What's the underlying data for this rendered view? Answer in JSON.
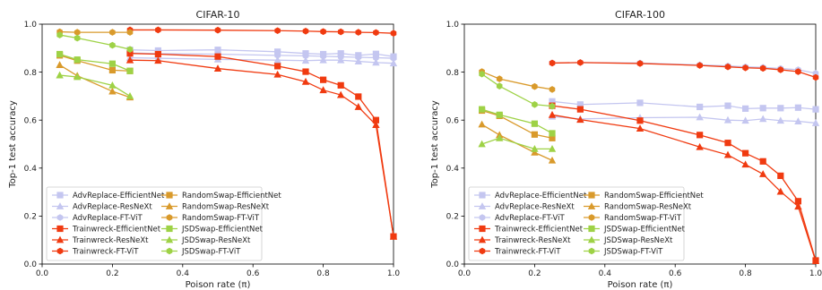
{
  "colors": {
    "AdvReplace": "#c4c6f0",
    "Trainwreck": "#f03a10",
    "RandomSwap": "#d99a2b",
    "JSDSwap": "#9ed246"
  },
  "chart_data": [
    {
      "type": "line",
      "title": "CIFAR-10",
      "xlabel": "Poison rate (π)",
      "ylabel": "Top-1 test accuracy",
      "xlim": [
        0.0,
        1.0
      ],
      "ylim": [
        0.0,
        1.0
      ],
      "xticks": [
        "0.0",
        "0.2",
        "0.4",
        "0.6",
        "0.8",
        "1.0"
      ],
      "yticks": [
        "0.0",
        "0.2",
        "0.4",
        "0.6",
        "0.8",
        "1.0"
      ],
      "legend_position": "lower-left",
      "series": [
        {
          "name": "AdvReplace-EfficientNet",
          "family": "AdvReplace",
          "marker": "square",
          "x": [
            0.25,
            0.33,
            0.5,
            0.67,
            0.75,
            0.8,
            0.85,
            0.9,
            0.95,
            1.0
          ],
          "y": [
            0.893,
            0.89,
            0.893,
            0.885,
            0.878,
            0.875,
            0.878,
            0.87,
            0.876,
            0.865
          ]
        },
        {
          "name": "AdvReplace-ResNeXt",
          "family": "AdvReplace",
          "marker": "triangle",
          "x": [
            0.25,
            0.33,
            0.5,
            0.67,
            0.75,
            0.8,
            0.85,
            0.9,
            0.95,
            1.0
          ],
          "y": [
            0.86,
            0.858,
            0.853,
            0.85,
            0.848,
            0.85,
            0.85,
            0.845,
            0.84,
            0.837
          ]
        },
        {
          "name": "AdvReplace-FT-ViT",
          "family": "AdvReplace",
          "marker": "hexagon",
          "x": [
            0.25,
            0.33,
            0.5,
            0.67,
            0.75,
            0.8,
            0.85,
            0.9,
            0.95,
            1.0
          ],
          "y": [
            0.88,
            0.877,
            0.875,
            0.87,
            0.868,
            0.866,
            0.864,
            0.862,
            0.86,
            0.858
          ]
        },
        {
          "name": "Trainwreck-EfficientNet",
          "family": "Trainwreck",
          "marker": "square",
          "x": [
            0.25,
            0.33,
            0.5,
            0.67,
            0.75,
            0.8,
            0.85,
            0.9,
            0.95,
            1.0
          ],
          "y": [
            0.878,
            0.875,
            0.865,
            0.825,
            0.802,
            0.768,
            0.745,
            0.698,
            0.6,
            0.115
          ]
        },
        {
          "name": "Trainwreck-ResNeXt",
          "family": "Trainwreck",
          "marker": "triangle",
          "x": [
            0.25,
            0.33,
            0.5,
            0.67,
            0.75,
            0.8,
            0.85,
            0.9,
            0.95,
            1.0
          ],
          "y": [
            0.85,
            0.848,
            0.815,
            0.79,
            0.76,
            0.725,
            0.705,
            0.655,
            0.58,
            0.115
          ]
        },
        {
          "name": "Trainwreck-FT-ViT",
          "family": "Trainwreck",
          "marker": "hexagon",
          "x": [
            0.25,
            0.33,
            0.5,
            0.67,
            0.75,
            0.8,
            0.85,
            0.9,
            0.95,
            1.0
          ],
          "y": [
            0.976,
            0.976,
            0.975,
            0.973,
            0.971,
            0.969,
            0.968,
            0.966,
            0.965,
            0.962
          ]
        },
        {
          "name": "RandomSwap-EfficientNet",
          "family": "RandomSwap",
          "marker": "square",
          "x": [
            0.05,
            0.1,
            0.2,
            0.25
          ],
          "y": [
            0.87,
            0.848,
            0.808,
            0.805
          ]
        },
        {
          "name": "RandomSwap-ResNeXt",
          "family": "RandomSwap",
          "marker": "triangle",
          "x": [
            0.05,
            0.1,
            0.2,
            0.25
          ],
          "y": [
            0.83,
            0.785,
            0.72,
            0.695
          ]
        },
        {
          "name": "RandomSwap-FT-ViT",
          "family": "RandomSwap",
          "marker": "hexagon",
          "x": [
            0.05,
            0.1,
            0.2,
            0.25
          ],
          "y": [
            0.968,
            0.966,
            0.966,
            0.966
          ]
        },
        {
          "name": "JSDSwap-EfficientNet",
          "family": "JSDSwap",
          "marker": "square",
          "x": [
            0.05,
            0.1,
            0.2,
            0.25
          ],
          "y": [
            0.875,
            0.852,
            0.835,
            0.805
          ]
        },
        {
          "name": "JSDSwap-ResNeXt",
          "family": "JSDSwap",
          "marker": "triangle",
          "x": [
            0.05,
            0.1,
            0.2,
            0.25
          ],
          "y": [
            0.787,
            0.78,
            0.745,
            0.7
          ]
        },
        {
          "name": "JSDSwap-FT-ViT",
          "family": "JSDSwap",
          "marker": "hexagon",
          "x": [
            0.05,
            0.1,
            0.2,
            0.25
          ],
          "y": [
            0.955,
            0.942,
            0.912,
            0.895
          ]
        }
      ]
    },
    {
      "type": "line",
      "title": "CIFAR-100",
      "xlabel": "Poison rate (π)",
      "ylabel": "Top-1 test accuracy",
      "xlim": [
        0.0,
        1.0
      ],
      "ylim": [
        0.0,
        1.0
      ],
      "xticks": [
        "0.0",
        "0.2",
        "0.4",
        "0.6",
        "0.8",
        "1.0"
      ],
      "yticks": [
        "0.0",
        "0.2",
        "0.4",
        "0.6",
        "0.8",
        "1.0"
      ],
      "legend_position": "lower-left",
      "series": [
        {
          "name": "AdvReplace-EfficientNet",
          "family": "AdvReplace",
          "marker": "square",
          "x": [
            0.25,
            0.33,
            0.5,
            0.67,
            0.75,
            0.8,
            0.85,
            0.9,
            0.95,
            1.0
          ],
          "y": [
            0.678,
            0.665,
            0.672,
            0.655,
            0.66,
            0.648,
            0.65,
            0.65,
            0.652,
            0.645
          ]
        },
        {
          "name": "AdvReplace-ResNeXt",
          "family": "AdvReplace",
          "marker": "triangle",
          "x": [
            0.25,
            0.33,
            0.5,
            0.67,
            0.75,
            0.8,
            0.85,
            0.9,
            0.95,
            1.0
          ],
          "y": [
            0.615,
            0.605,
            0.61,
            0.612,
            0.6,
            0.598,
            0.605,
            0.598,
            0.595,
            0.588
          ]
        },
        {
          "name": "AdvReplace-FT-ViT",
          "family": "AdvReplace",
          "marker": "hexagon",
          "x": [
            0.25,
            0.33,
            0.5,
            0.67,
            0.75,
            0.8,
            0.85,
            0.9,
            0.95,
            1.0
          ],
          "y": [
            0.838,
            0.84,
            0.838,
            0.83,
            0.826,
            0.822,
            0.82,
            0.815,
            0.81,
            0.795
          ]
        },
        {
          "name": "Trainwreck-EfficientNet",
          "family": "Trainwreck",
          "marker": "square",
          "x": [
            0.25,
            0.33,
            0.5,
            0.67,
            0.75,
            0.8,
            0.85,
            0.9,
            0.95,
            1.0
          ],
          "y": [
            0.66,
            0.645,
            0.598,
            0.538,
            0.505,
            0.462,
            0.428,
            0.368,
            0.262,
            0.015
          ]
        },
        {
          "name": "Trainwreck-ResNeXt",
          "family": "Trainwreck",
          "marker": "triangle",
          "x": [
            0.25,
            0.33,
            0.5,
            0.67,
            0.75,
            0.8,
            0.85,
            0.9,
            0.95,
            1.0
          ],
          "y": [
            0.622,
            0.602,
            0.565,
            0.488,
            0.455,
            0.415,
            0.375,
            0.302,
            0.24,
            0.012
          ]
        },
        {
          "name": "Trainwreck-FT-ViT",
          "family": "Trainwreck",
          "marker": "hexagon",
          "x": [
            0.25,
            0.33,
            0.5,
            0.67,
            0.75,
            0.8,
            0.85,
            0.9,
            0.95,
            1.0
          ],
          "y": [
            0.838,
            0.84,
            0.836,
            0.828,
            0.822,
            0.818,
            0.816,
            0.81,
            0.802,
            0.778
          ]
        },
        {
          "name": "RandomSwap-EfficientNet",
          "family": "RandomSwap",
          "marker": "square",
          "x": [
            0.05,
            0.1,
            0.2,
            0.25
          ],
          "y": [
            0.64,
            0.618,
            0.54,
            0.525
          ]
        },
        {
          "name": "RandomSwap-ResNeXt",
          "family": "RandomSwap",
          "marker": "triangle",
          "x": [
            0.05,
            0.1,
            0.2,
            0.25
          ],
          "y": [
            0.582,
            0.538,
            0.465,
            0.432
          ]
        },
        {
          "name": "RandomSwap-FT-ViT",
          "family": "RandomSwap",
          "marker": "hexagon",
          "x": [
            0.05,
            0.1,
            0.2,
            0.25
          ],
          "y": [
            0.802,
            0.772,
            0.74,
            0.728
          ]
        },
        {
          "name": "JSDSwap-EfficientNet",
          "family": "JSDSwap",
          "marker": "square",
          "x": [
            0.05,
            0.1,
            0.2,
            0.25
          ],
          "y": [
            0.645,
            0.622,
            0.585,
            0.545
          ]
        },
        {
          "name": "JSDSwap-ResNeXt",
          "family": "JSDSwap",
          "marker": "triangle",
          "x": [
            0.05,
            0.1,
            0.2,
            0.25
          ],
          "y": [
            0.5,
            0.525,
            0.48,
            0.48
          ]
        },
        {
          "name": "JSDSwap-FT-ViT",
          "family": "JSDSwap",
          "marker": "hexagon",
          "x": [
            0.05,
            0.1,
            0.2,
            0.25
          ],
          "y": [
            0.792,
            0.742,
            0.665,
            0.658
          ]
        }
      ]
    }
  ]
}
